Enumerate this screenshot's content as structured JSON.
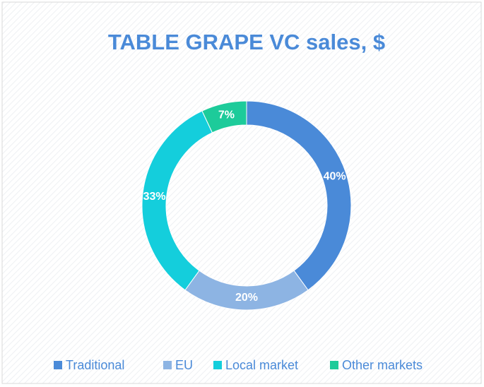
{
  "chart_data": {
    "type": "donut",
    "title": "TABLE GRAPE VC sales, $",
    "categories": [
      "Traditional",
      "EU",
      "Local market",
      "Other markets"
    ],
    "values": [
      40,
      20,
      33,
      7
    ],
    "value_labels": [
      "40%",
      "20%",
      "33%",
      "7%"
    ],
    "colors": [
      "#4a8ad8",
      "#8db4e3",
      "#14cedc",
      "#1dcb9a"
    ],
    "legend": "bottom"
  }
}
